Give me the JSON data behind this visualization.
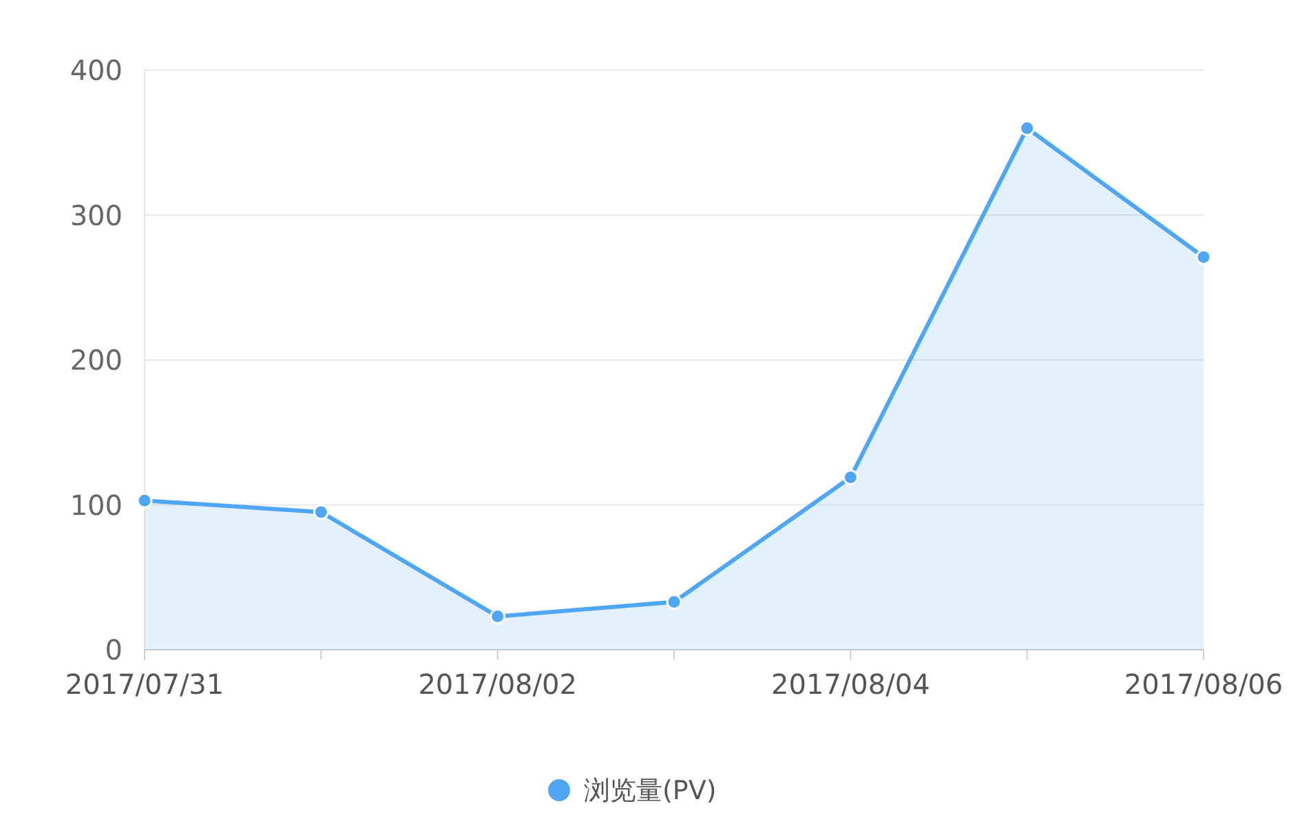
{
  "chart_data": {
    "type": "area",
    "categories": [
      "2017/07/31",
      null,
      "2017/08/02",
      null,
      "2017/08/04",
      null,
      "2017/08/06"
    ],
    "series": [
      {
        "name": "浏览量(PV)",
        "color": "#4ea6f5",
        "values": [
          103,
          95,
          23,
          33,
          119,
          360,
          271
        ]
      }
    ],
    "ylim": [
      0,
      400
    ],
    "yticks": [
      0,
      100,
      200,
      300,
      400
    ],
    "grid": "y",
    "legend": "bottom",
    "marker": "circle"
  }
}
